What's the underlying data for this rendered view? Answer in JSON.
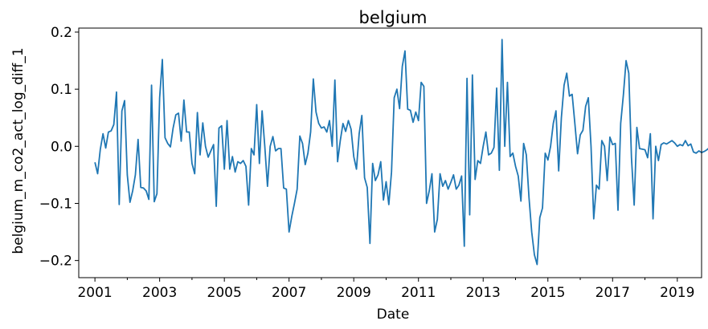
{
  "chart_data": {
    "type": "line",
    "title": "belgium",
    "xlabel": "Date",
    "ylabel": "belgium_m_co2_act_log_diff_1",
    "xlim": [
      "2000-07",
      "2019-10"
    ],
    "ylim": [
      -0.23,
      0.207
    ],
    "x_ticks": [
      "2001",
      "2003",
      "2005",
      "2007",
      "2009",
      "2011",
      "2013",
      "2015",
      "2017",
      "2019"
    ],
    "y_ticks": [
      "0.2",
      "0.1",
      "0.0",
      "−0.1",
      "−0.2"
    ],
    "y_tick_values": [
      0.2,
      0.1,
      0.0,
      -0.1,
      -0.2
    ],
    "grid": false,
    "legend": "none",
    "line_color": "#1f77b4",
    "series": [
      {
        "start": "2001-01",
        "frequency": "monthly",
        "values": [
          -0.028,
          -0.048,
          -0.005,
          0.022,
          -0.003,
          0.025,
          0.027,
          0.038,
          0.095,
          -0.102,
          0.062,
          0.08,
          -0.05,
          -0.098,
          -0.078,
          -0.05,
          0.012,
          -0.072,
          -0.073,
          -0.078,
          -0.093,
          0.107,
          -0.097,
          -0.083,
          0.085,
          0.152,
          0.015,
          0.005,
          -0.001,
          0.032,
          0.055,
          0.058,
          0.009,
          0.081,
          0.025,
          0.025,
          -0.03,
          -0.048,
          0.059,
          -0.015,
          0.041,
          0.0,
          -0.019,
          -0.008,
          0.003,
          -0.105,
          0.032,
          0.036,
          -0.04,
          0.045,
          -0.04,
          -0.018,
          -0.045,
          -0.027,
          -0.03,
          -0.025,
          -0.035,
          -0.103,
          -0.004,
          -0.015,
          0.073,
          -0.03,
          0.062,
          0.0,
          -0.07,
          0.0,
          0.017,
          -0.008,
          -0.004,
          -0.004,
          -0.073,
          -0.075,
          -0.15,
          -0.123,
          -0.1,
          -0.075,
          0.018,
          0.005,
          -0.032,
          -0.012,
          0.025,
          0.118,
          0.06,
          0.04,
          0.032,
          0.034,
          0.025,
          0.045,
          0.0,
          0.116,
          -0.027,
          0.01,
          0.04,
          0.026,
          0.045,
          0.03,
          -0.018,
          -0.04,
          0.022,
          0.054,
          -0.055,
          -0.072,
          -0.17,
          -0.03,
          -0.06,
          -0.05,
          -0.027,
          -0.094,
          -0.062,
          -0.102,
          -0.045,
          0.085,
          0.1,
          0.066,
          0.14,
          0.167,
          0.065,
          0.063,
          0.042,
          0.06,
          0.045,
          0.112,
          0.105,
          -0.1,
          -0.078,
          -0.048,
          -0.15,
          -0.128,
          -0.048,
          -0.07,
          -0.06,
          -0.075,
          -0.063,
          -0.05,
          -0.075,
          -0.068,
          -0.052,
          -0.175,
          0.119,
          -0.12,
          0.125,
          -0.058,
          -0.025,
          -0.03,
          0.0,
          0.025,
          -0.015,
          -0.012,
          -0.002,
          0.102,
          -0.042,
          0.187,
          0.0,
          0.112,
          -0.018,
          -0.012,
          -0.035,
          -0.052,
          -0.096,
          0.005,
          -0.015,
          -0.09,
          -0.15,
          -0.19,
          -0.207,
          -0.125,
          -0.108,
          -0.012,
          -0.024,
          0.0,
          0.04,
          0.062,
          -0.043,
          0.05,
          0.107,
          0.128,
          0.088,
          0.091,
          0.04,
          -0.013,
          0.02,
          0.028,
          0.07,
          0.085,
          0.0,
          -0.127,
          -0.068,
          -0.075,
          0.01,
          0.0,
          -0.06,
          0.016,
          0.003,
          0.005,
          -0.112,
          0.04,
          0.09,
          0.15,
          0.128,
          -0.02,
          -0.103,
          0.033,
          -0.004,
          -0.005,
          -0.006,
          -0.02,
          0.022,
          -0.127,
          0.0,
          -0.025,
          0.003,
          0.006,
          0.004,
          0.007,
          0.01,
          0.006,
          0.0,
          0.003,
          0.001,
          0.01,
          0.001,
          0.004,
          -0.01,
          -0.012,
          -0.008,
          -0.011,
          -0.009,
          -0.006,
          -0.002,
          -0.002,
          -0.005,
          -0.003,
          -0.01
        ]
      }
    ]
  }
}
